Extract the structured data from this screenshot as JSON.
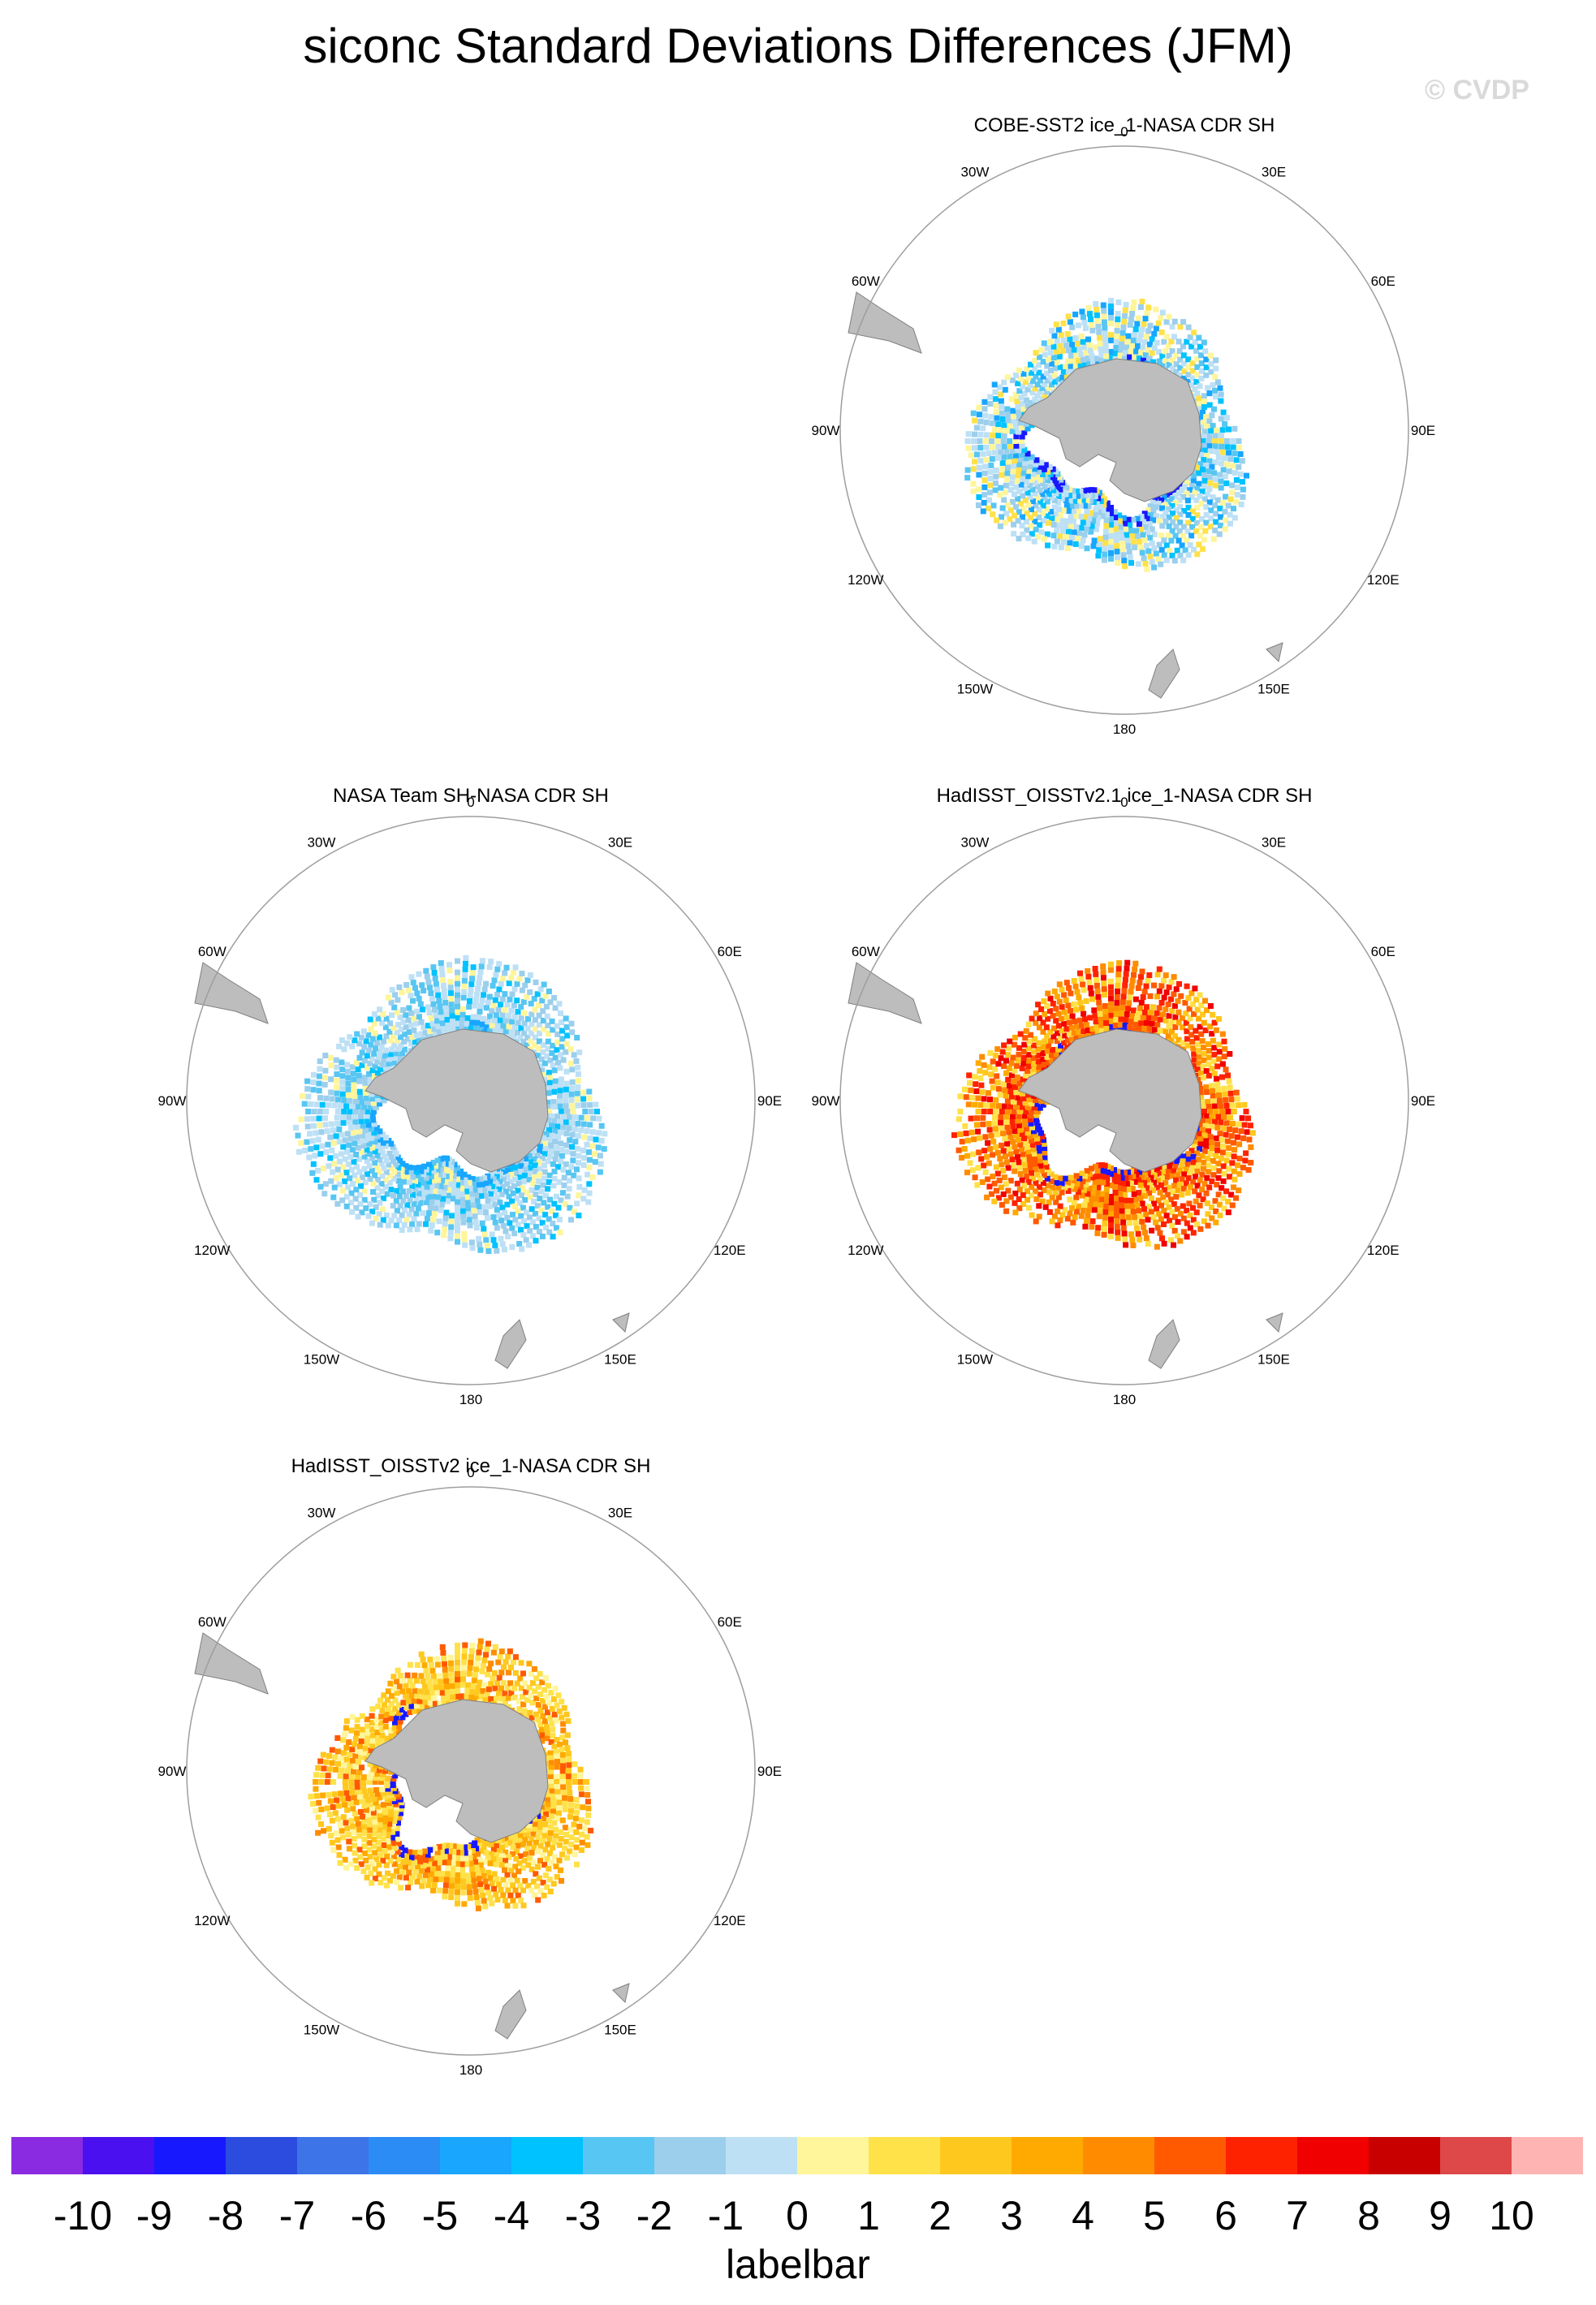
{
  "title": "siconc Standard Deviations Differences (JFM)",
  "watermark": "© CVDP",
  "panels": [
    {
      "title": "COBE-SST2 ice_1-NASA CDR SH",
      "pattern": "cool-mixed"
    },
    {
      "title": "NASA Team SH-NASA CDR SH",
      "pattern": "cool"
    },
    {
      "title": "HadISST_OISSTv2.1 ice_1-NASA CDR SH",
      "pattern": "warm-strong"
    },
    {
      "title": "HadISST_OISSTv2 ice_1-NASA CDR SH",
      "pattern": "warm"
    }
  ],
  "longitude_labels": [
    "0",
    "30E",
    "60E",
    "90E",
    "120E",
    "150E",
    "180",
    "150W",
    "120W",
    "90W",
    "60W",
    "30W"
  ],
  "colorbar": {
    "colors": [
      "#8a2be2",
      "#4b10f0",
      "#1818ff",
      "#2c4ce0",
      "#3d74e8",
      "#2c8cf5",
      "#18a6ff",
      "#00c2ff",
      "#58c6f2",
      "#9ccfec",
      "#bde0f5",
      "#fff59a",
      "#ffe14a",
      "#ffc81e",
      "#ffaa00",
      "#ff8c00",
      "#ff5a00",
      "#ff2200",
      "#f00000",
      "#c80000",
      "#de4848",
      "#ffb4b4"
    ],
    "tick_labels": [
      "-10",
      "-9",
      "-8",
      "-7",
      "-6",
      "-5",
      "-4",
      "-3",
      "-2",
      "-1",
      "0",
      "1",
      "2",
      "3",
      "4",
      "5",
      "6",
      "7",
      "8",
      "9",
      "10"
    ],
    "caption": "labelbar"
  }
}
